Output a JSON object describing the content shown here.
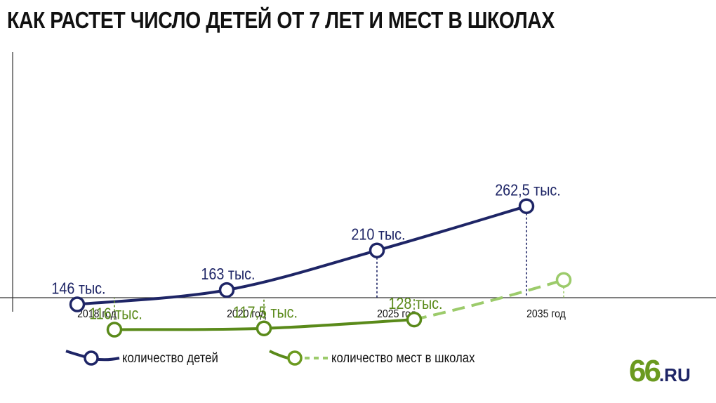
{
  "title": "КАК РАСТЕТ ЧИСЛО ДЕТЕЙ ОТ 7 ЛЕТ И МЕСТ В ШКОЛАХ",
  "colors": {
    "children": "#1e2566",
    "places": "#5a8a1a",
    "places_projected": "#9ccb6b",
    "axis": "#333333"
  },
  "chart_data": {
    "type": "line",
    "categories": [
      "2018 год",
      "2020 год",
      "2025 год",
      "2035 год"
    ],
    "grid": false,
    "series": [
      {
        "name": "количество детей",
        "color": "#1e2566",
        "values": [
          146,
          163,
          210,
          262.5
        ],
        "labels": [
          "146 тыс.",
          "163 тыс.",
          "210 тыс.",
          "262,5 тыс."
        ],
        "style": "solid"
      },
      {
        "name": "количество мест в школах",
        "color": "#5a8a1a",
        "projected_color": "#9ccb6b",
        "values": [
          116,
          117.5,
          128,
          175
        ],
        "labels": [
          "116 тыс.",
          "117,5 тыс.",
          "128 тыс.",
          ""
        ],
        "style": "solid",
        "projected_from_index": 2
      }
    ]
  },
  "legend": {
    "children_label": "количество детей",
    "places_label": "количество мест в школах"
  },
  "logo": {
    "number": "66",
    "domain": ".RU"
  }
}
